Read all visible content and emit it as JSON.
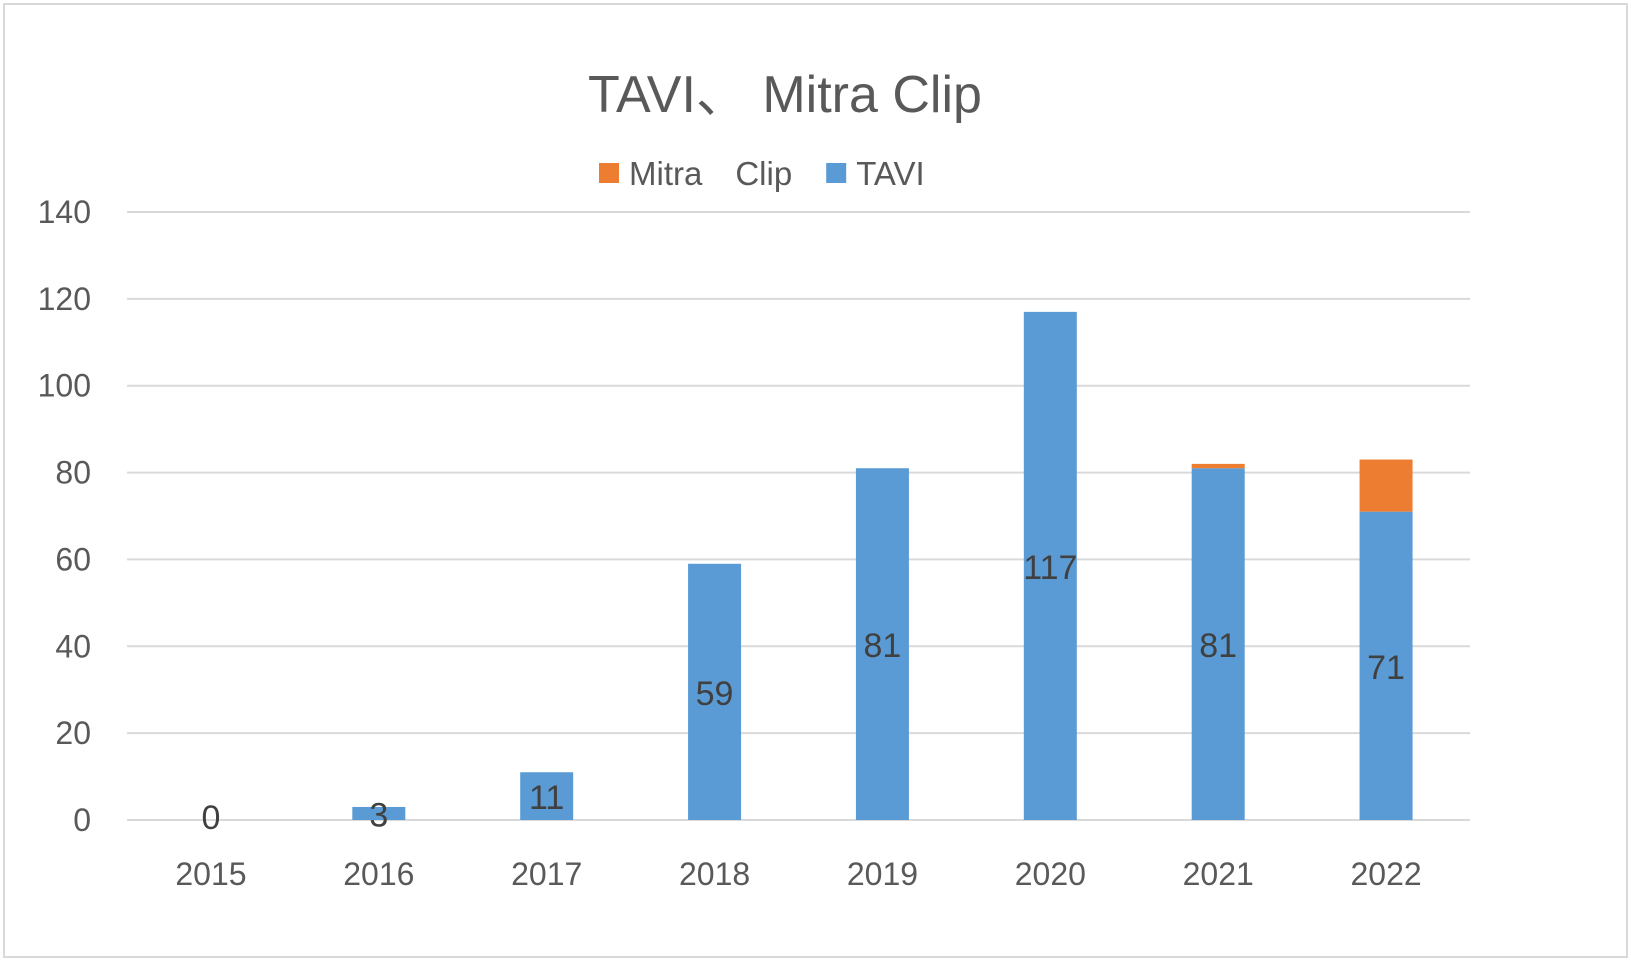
{
  "chart_data": {
    "type": "bar",
    "stacked": true,
    "title": "TAVI、 Mitra Clip",
    "categories": [
      "2015",
      "2016",
      "2017",
      "2018",
      "2019",
      "2020",
      "2021",
      "2022"
    ],
    "series": [
      {
        "name": "TAVI",
        "color": "#5b9bd5",
        "values": [
          0,
          3,
          11,
          59,
          81,
          117,
          81,
          71
        ],
        "labels": [
          "0",
          "3",
          "11",
          "59",
          "81",
          "117",
          "81",
          "71"
        ]
      },
      {
        "name": "Mitra　Clip",
        "color": "#ed7d31",
        "values": [
          0,
          0,
          0,
          0,
          0,
          0,
          1,
          12
        ]
      }
    ],
    "legend": {
      "position": "top",
      "order": [
        "Mitra　Clip",
        "TAVI"
      ]
    },
    "ylim": [
      0,
      140
    ],
    "yticks": [
      "0",
      "20",
      "40",
      "60",
      "80",
      "100",
      "120",
      "140"
    ],
    "grid": true,
    "gridColor": "#d9d9d9",
    "textColor": "#595959",
    "labelColor": "#404040"
  }
}
